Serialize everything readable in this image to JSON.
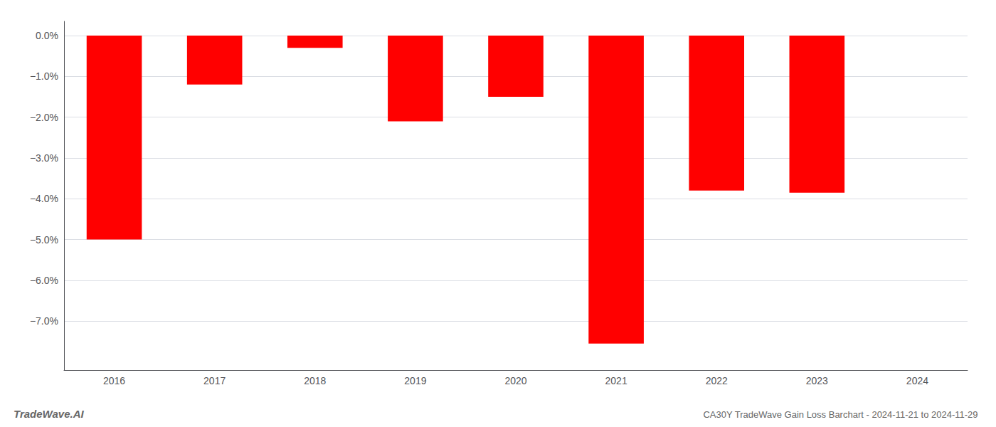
{
  "chart_data": {
    "type": "bar",
    "title": "CA30Y TradeWave Gain Loss Barchart - 2024-11-21 to 2024-11-29",
    "annotations": [
      "TradeWave.AI"
    ],
    "categories": [
      "2016",
      "2017",
      "2018",
      "2019",
      "2020",
      "2021",
      "2022",
      "2023",
      "2024"
    ],
    "values": [
      -5.0,
      -1.2,
      -0.3,
      -2.1,
      -1.5,
      -7.55,
      -3.8,
      -3.85,
      0.0
    ],
    "color": "#ff0000",
    "ylim": [
      -8.2,
      0.35
    ],
    "yticks": [
      {
        "value": 0.0,
        "label": "0.0%"
      },
      {
        "value": -1.0,
        "label": "−1.0%"
      },
      {
        "value": -2.0,
        "label": "−2.0%"
      },
      {
        "value": -3.0,
        "label": "−3.0%"
      },
      {
        "value": -4.0,
        "label": "−4.0%"
      },
      {
        "value": -5.0,
        "label": "−5.0%"
      },
      {
        "value": -6.0,
        "label": "−6.0%"
      },
      {
        "value": -7.0,
        "label": "−7.0%"
      }
    ],
    "grid": true
  }
}
